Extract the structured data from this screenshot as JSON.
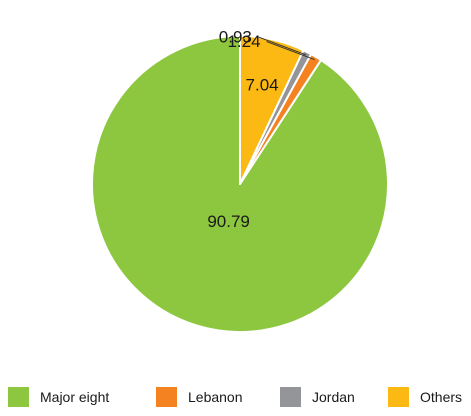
{
  "chart_data": {
    "type": "pie",
    "title": "",
    "slices": [
      {
        "label": "Major eight",
        "value": 90.79,
        "value_label": "90.79",
        "color": "#8dc63f"
      },
      {
        "label": "Lebanon",
        "value": 1.24,
        "value_label": "1.24",
        "color": "#f58220"
      },
      {
        "label": "Jordan",
        "value": 0.93,
        "value_label": "0.93",
        "color": "#939598"
      },
      {
        "label": "Others",
        "value": 7.04,
        "value_label": "7.04",
        "color": "#fdb913"
      }
    ],
    "start_angle": "12 o'clock",
    "direction": "counterclockwise",
    "legend_position": "bottom"
  }
}
